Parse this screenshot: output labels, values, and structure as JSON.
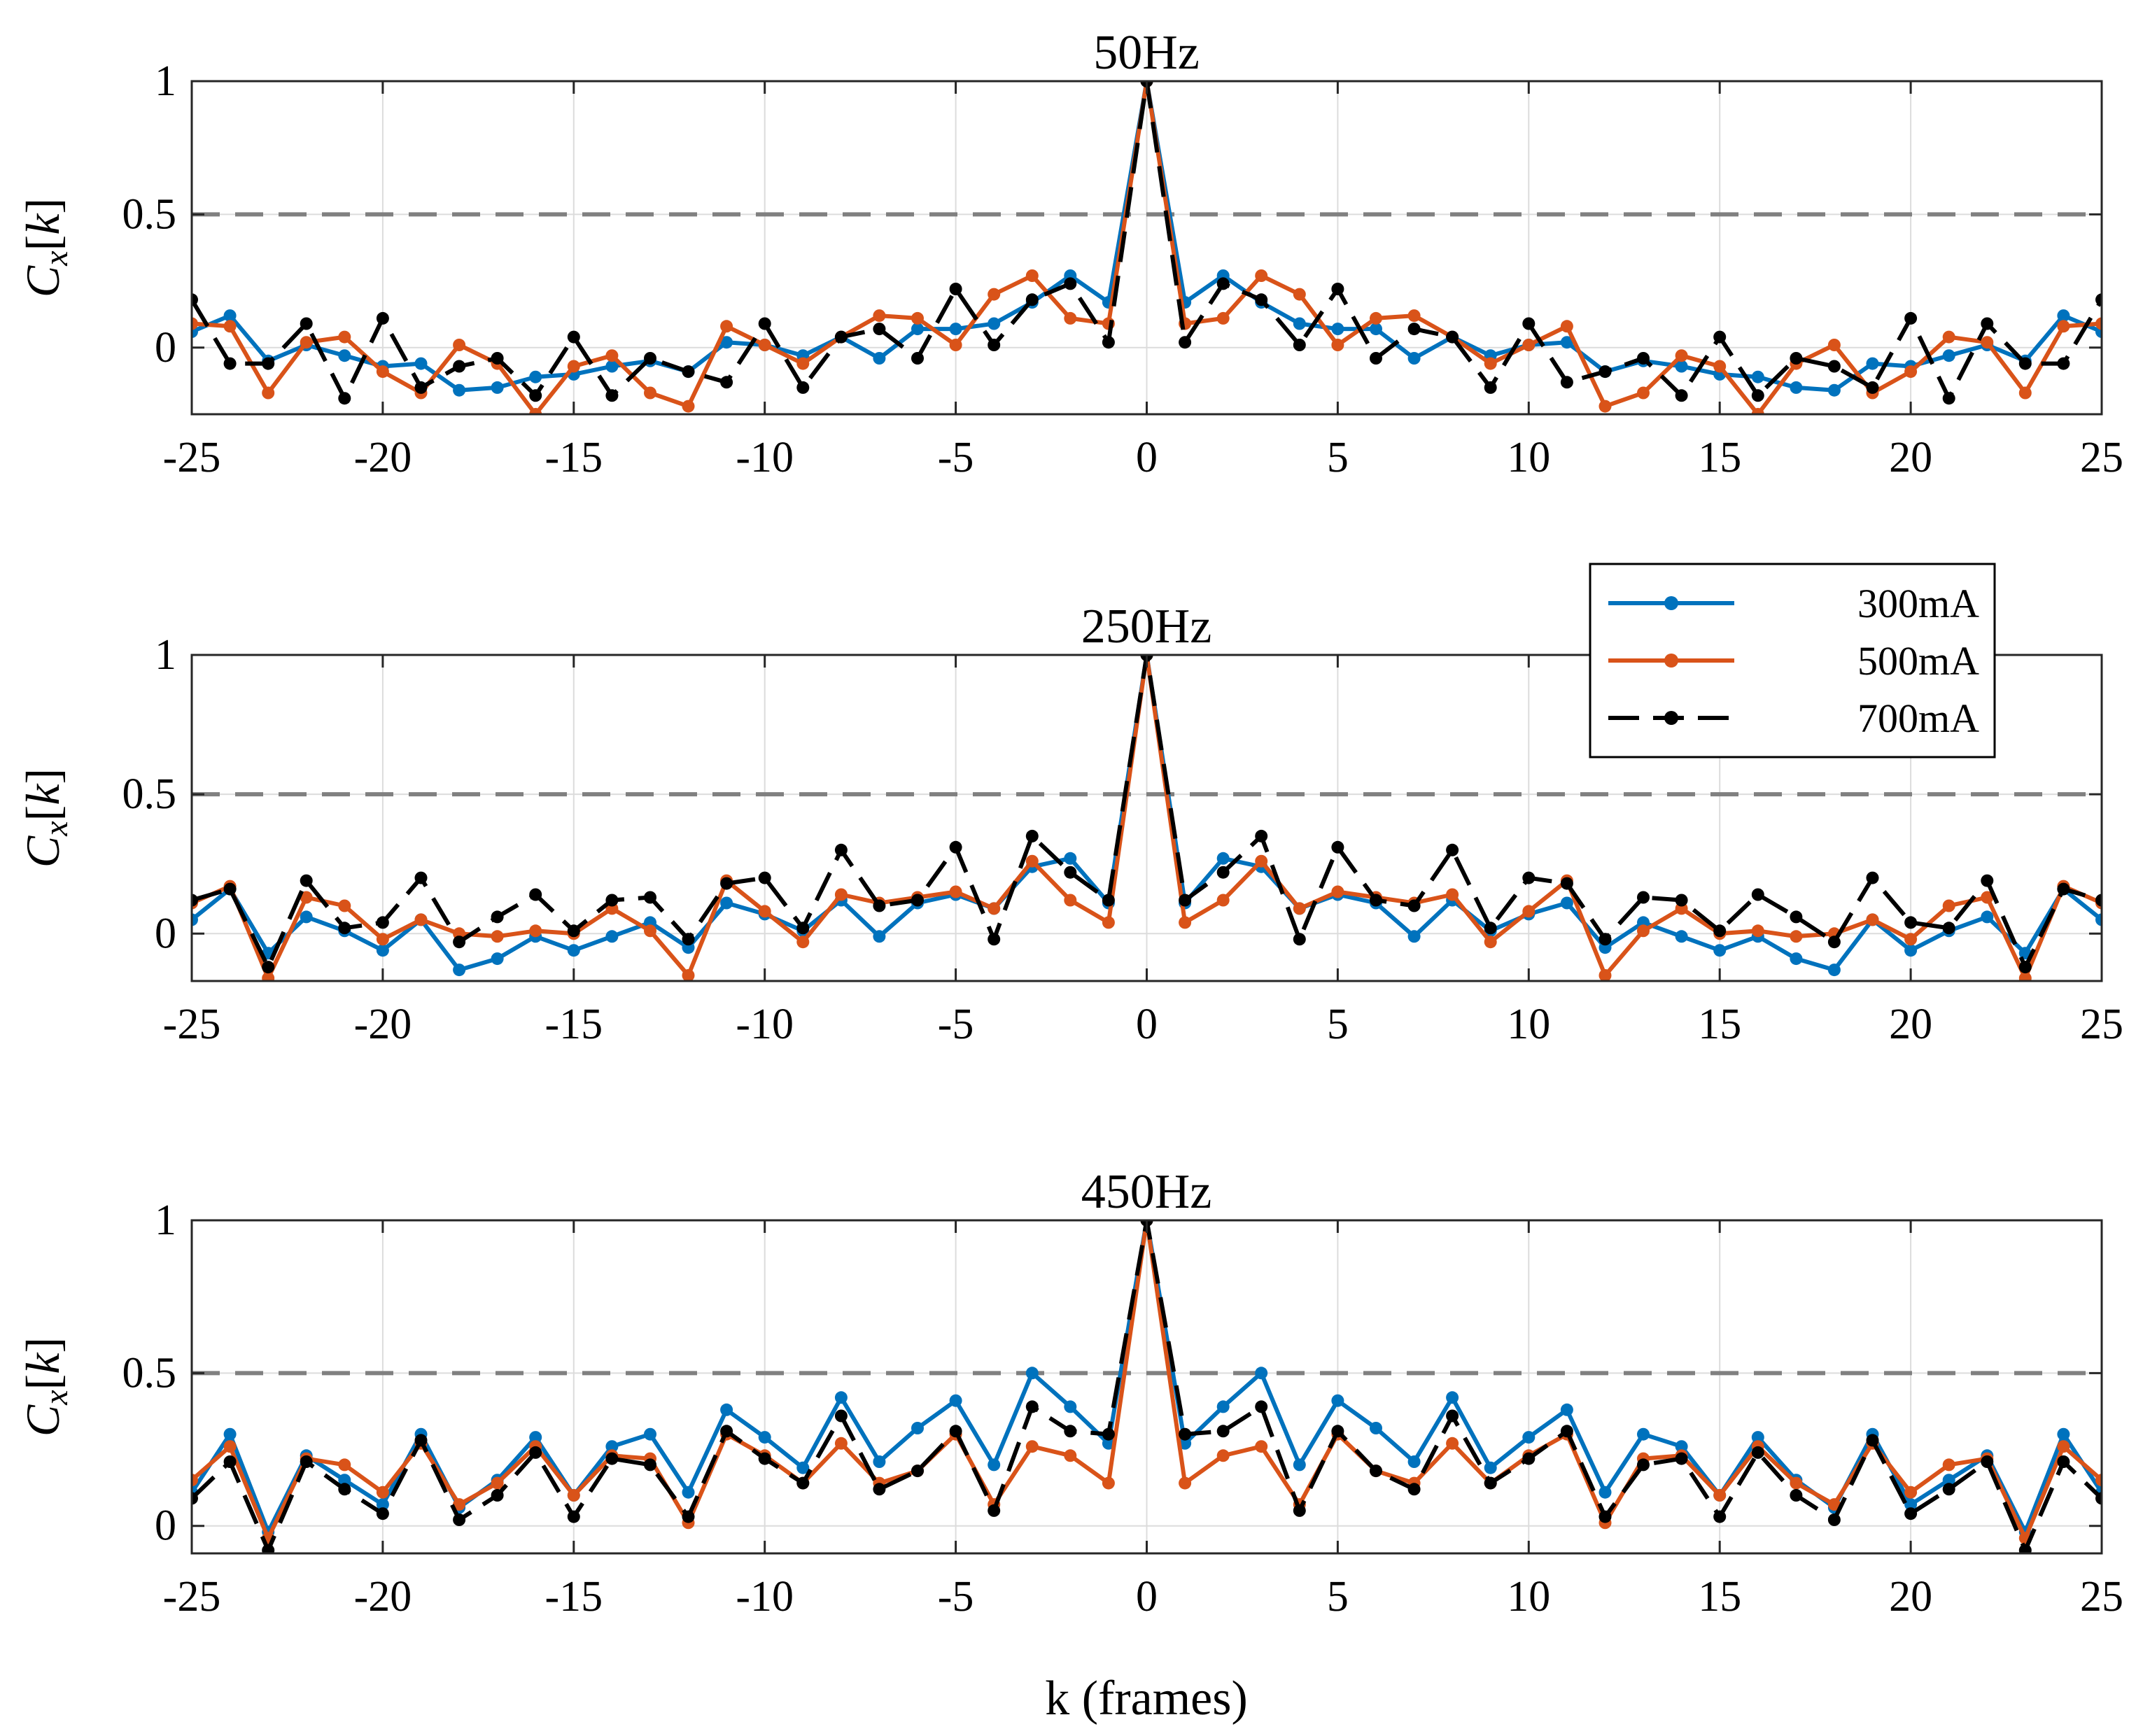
{
  "figure": {
    "xlabel": "k (frames)"
  },
  "chart_data": [
    {
      "type": "line",
      "title": "50Hz",
      "ylabel": "C_x[k]",
      "xlim": [
        -25,
        25
      ],
      "ylim": [
        -0.25,
        1
      ],
      "x": [
        -25,
        -24,
        -23,
        -22,
        -21,
        -20,
        -19,
        -18,
        -17,
        -16,
        -15,
        -14,
        -13,
        -12,
        -11,
        -10,
        -9,
        -8,
        -7,
        -6,
        -5,
        -4,
        -3,
        -2,
        -1,
        0,
        1,
        2,
        3,
        4,
        5,
        6,
        7,
        8,
        9,
        10,
        11,
        12,
        13,
        14,
        15,
        16,
        17,
        18,
        19,
        20,
        21,
        22,
        23,
        24,
        25
      ],
      "xticks": [
        "-25",
        "-20",
        "-15",
        "-10",
        "-5",
        "0",
        "5",
        "10",
        "15",
        "20",
        "25"
      ],
      "yticks": [
        {
          "value": 0,
          "label": "0"
        },
        {
          "value": 0.5,
          "label": "0.5"
        },
        {
          "value": 1,
          "label": "1"
        }
      ],
      "reference_line": 0.5,
      "grid": true,
      "series": [
        {
          "name": "300mA",
          "color": "#0072BD",
          "dashed": false,
          "values": [
            0.06,
            0.12,
            -0.05,
            0.01,
            -0.03,
            -0.07,
            -0.06,
            -0.16,
            -0.15,
            -0.11,
            -0.1,
            -0.07,
            -0.05,
            -0.09,
            0.02,
            0.01,
            -0.03,
            0.04,
            -0.04,
            0.07,
            0.07,
            0.09,
            0.17,
            0.27,
            0.17,
            1.0,
            0.17,
            0.27,
            0.17,
            0.09,
            0.07,
            0.07,
            -0.04,
            0.04,
            -0.03,
            0.01,
            0.02,
            -0.09,
            -0.05,
            -0.07,
            -0.1,
            -0.11,
            -0.15,
            -0.16,
            -0.06,
            -0.07,
            -0.03,
            0.01,
            -0.05,
            0.12,
            0.06
          ]
        },
        {
          "name": "500mA",
          "color": "#D95319",
          "dashed": false,
          "values": [
            0.09,
            0.08,
            -0.17,
            0.02,
            0.04,
            -0.09,
            -0.17,
            0.01,
            -0.06,
            -0.25,
            -0.07,
            -0.03,
            -0.17,
            -0.22,
            0.08,
            0.01,
            -0.06,
            0.04,
            0.12,
            0.11,
            0.01,
            0.2,
            0.27,
            0.11,
            0.09,
            1.0,
            0.09,
            0.11,
            0.27,
            0.2,
            0.01,
            0.11,
            0.12,
            0.04,
            -0.06,
            0.01,
            0.08,
            -0.22,
            -0.17,
            -0.03,
            -0.07,
            -0.25,
            -0.06,
            0.01,
            -0.17,
            -0.09,
            0.04,
            0.02,
            -0.17,
            0.08,
            0.09
          ]
        },
        {
          "name": "700mA",
          "color": "#000000",
          "dashed": true,
          "values": [
            0.18,
            -0.06,
            -0.06,
            0.09,
            -0.19,
            0.11,
            -0.15,
            -0.07,
            -0.04,
            -0.18,
            0.04,
            -0.18,
            -0.04,
            -0.09,
            -0.13,
            0.09,
            -0.15,
            0.04,
            0.07,
            -0.04,
            0.22,
            0.01,
            0.18,
            0.24,
            0.02,
            1.0,
            0.02,
            0.24,
            0.18,
            0.01,
            0.22,
            -0.04,
            0.07,
            0.04,
            -0.15,
            0.09,
            -0.13,
            -0.09,
            -0.04,
            -0.18,
            0.04,
            -0.18,
            -0.04,
            -0.07,
            -0.15,
            0.11,
            -0.19,
            0.09,
            -0.06,
            -0.06,
            0.18
          ]
        }
      ]
    },
    {
      "type": "line",
      "title": "250Hz",
      "ylabel": "C_x[k]",
      "xlim": [
        -25,
        25
      ],
      "ylim": [
        -0.17,
        1
      ],
      "x": [
        -25,
        -24,
        -23,
        -22,
        -21,
        -20,
        -19,
        -18,
        -17,
        -16,
        -15,
        -14,
        -13,
        -12,
        -11,
        -10,
        -9,
        -8,
        -7,
        -6,
        -5,
        -4,
        -3,
        -2,
        -1,
        0,
        1,
        2,
        3,
        4,
        5,
        6,
        7,
        8,
        9,
        10,
        11,
        12,
        13,
        14,
        15,
        16,
        17,
        18,
        19,
        20,
        21,
        22,
        23,
        24,
        25
      ],
      "xticks": [
        "-25",
        "-20",
        "-15",
        "-10",
        "-5",
        "0",
        "5",
        "10",
        "15",
        "20",
        "25"
      ],
      "yticks": [
        {
          "value": 0,
          "label": "0"
        },
        {
          "value": 0.5,
          "label": "0.5"
        },
        {
          "value": 1,
          "label": "1"
        }
      ],
      "reference_line": 0.5,
      "grid": true,
      "series": [
        {
          "name": "300mA",
          "color": "#0072BD",
          "dashed": false,
          "values": [
            0.05,
            0.16,
            -0.07,
            0.06,
            0.01,
            -0.06,
            0.05,
            -0.13,
            -0.09,
            -0.01,
            -0.06,
            -0.01,
            0.04,
            -0.05,
            0.11,
            0.07,
            0.01,
            0.12,
            -0.01,
            0.11,
            0.14,
            0.09,
            0.24,
            0.27,
            0.11,
            1.0,
            0.11,
            0.27,
            0.24,
            0.09,
            0.14,
            0.11,
            -0.01,
            0.12,
            0.01,
            0.07,
            0.11,
            -0.05,
            0.04,
            -0.01,
            -0.06,
            -0.01,
            -0.09,
            -0.13,
            0.05,
            -0.06,
            0.01,
            0.06,
            -0.07,
            0.16,
            0.05
          ]
        },
        {
          "name": "500mA",
          "color": "#D95319",
          "dashed": false,
          "values": [
            0.11,
            0.17,
            -0.16,
            0.13,
            0.1,
            -0.02,
            0.05,
            0.0,
            -0.01,
            0.01,
            0.0,
            0.09,
            0.01,
            -0.15,
            0.19,
            0.08,
            -0.03,
            0.14,
            0.11,
            0.13,
            0.15,
            0.09,
            0.26,
            0.12,
            0.04,
            1.0,
            0.04,
            0.12,
            0.26,
            0.09,
            0.15,
            0.13,
            0.11,
            0.14,
            -0.03,
            0.08,
            0.19,
            -0.15,
            0.01,
            0.09,
            0.0,
            0.01,
            -0.01,
            0.0,
            0.05,
            -0.02,
            0.1,
            0.13,
            -0.16,
            0.17,
            0.11
          ]
        },
        {
          "name": "700mA",
          "color": "#000000",
          "dashed": true,
          "values": [
            0.12,
            0.16,
            -0.12,
            0.19,
            0.02,
            0.04,
            0.2,
            -0.03,
            0.06,
            0.14,
            0.01,
            0.12,
            0.13,
            -0.02,
            0.18,
            0.2,
            0.02,
            0.3,
            0.1,
            0.12,
            0.31,
            -0.02,
            0.35,
            0.22,
            0.12,
            1.0,
            0.12,
            0.22,
            0.35,
            -0.02,
            0.31,
            0.12,
            0.1,
            0.3,
            0.02,
            0.2,
            0.18,
            -0.02,
            0.13,
            0.12,
            0.01,
            0.14,
            0.06,
            -0.03,
            0.2,
            0.04,
            0.02,
            0.19,
            -0.12,
            0.16,
            0.12
          ]
        }
      ]
    },
    {
      "type": "line",
      "title": "450Hz",
      "ylabel": "C_x[k]",
      "xlim": [
        -25,
        25
      ],
      "ylim": [
        -0.09,
        1
      ],
      "x": [
        -25,
        -24,
        -23,
        -22,
        -21,
        -20,
        -19,
        -18,
        -17,
        -16,
        -15,
        -14,
        -13,
        -12,
        -11,
        -10,
        -9,
        -8,
        -7,
        -6,
        -5,
        -4,
        -3,
        -2,
        -1,
        0,
        1,
        2,
        3,
        4,
        5,
        6,
        7,
        8,
        9,
        10,
        11,
        12,
        13,
        14,
        15,
        16,
        17,
        18,
        19,
        20,
        21,
        22,
        23,
        24,
        25
      ],
      "xticks": [
        "-25",
        "-20",
        "-15",
        "-10",
        "-5",
        "0",
        "5",
        "10",
        "15",
        "20",
        "25"
      ],
      "yticks": [
        {
          "value": 0,
          "label": "0"
        },
        {
          "value": 0.5,
          "label": "0.5"
        },
        {
          "value": 1,
          "label": "1"
        }
      ],
      "reference_line": 0.5,
      "grid": true,
      "series": [
        {
          "name": "300mA",
          "color": "#0072BD",
          "dashed": false,
          "values": [
            0.11,
            0.3,
            -0.02,
            0.23,
            0.15,
            0.07,
            0.3,
            0.06,
            0.15,
            0.29,
            0.1,
            0.26,
            0.3,
            0.11,
            0.38,
            0.29,
            0.19,
            0.42,
            0.21,
            0.32,
            0.41,
            0.2,
            0.5,
            0.39,
            0.27,
            1.0,
            0.27,
            0.39,
            0.5,
            0.2,
            0.41,
            0.32,
            0.21,
            0.42,
            0.19,
            0.29,
            0.38,
            0.11,
            0.3,
            0.26,
            0.1,
            0.29,
            0.15,
            0.06,
            0.3,
            0.07,
            0.15,
            0.23,
            -0.02,
            0.3,
            0.11
          ]
        },
        {
          "name": "500mA",
          "color": "#D95319",
          "dashed": false,
          "values": [
            0.15,
            0.26,
            -0.04,
            0.22,
            0.2,
            0.11,
            0.27,
            0.07,
            0.14,
            0.26,
            0.1,
            0.23,
            0.22,
            0.01,
            0.3,
            0.23,
            0.14,
            0.27,
            0.14,
            0.18,
            0.3,
            0.07,
            0.26,
            0.23,
            0.14,
            1.0,
            0.14,
            0.23,
            0.26,
            0.07,
            0.3,
            0.18,
            0.14,
            0.27,
            0.14,
            0.23,
            0.3,
            0.01,
            0.22,
            0.23,
            0.1,
            0.26,
            0.14,
            0.07,
            0.27,
            0.11,
            0.2,
            0.22,
            -0.04,
            0.26,
            0.15
          ]
        },
        {
          "name": "700mA",
          "color": "#000000",
          "dashed": true,
          "values": [
            0.09,
            0.21,
            -0.08,
            0.21,
            0.12,
            0.04,
            0.28,
            0.02,
            0.1,
            0.24,
            0.03,
            0.22,
            0.2,
            0.03,
            0.31,
            0.22,
            0.14,
            0.36,
            0.12,
            0.18,
            0.31,
            0.05,
            0.39,
            0.31,
            0.3,
            1.0,
            0.3,
            0.31,
            0.39,
            0.05,
            0.31,
            0.18,
            0.12,
            0.36,
            0.14,
            0.22,
            0.31,
            0.03,
            0.2,
            0.22,
            0.03,
            0.24,
            0.1,
            0.02,
            0.28,
            0.04,
            0.12,
            0.21,
            -0.08,
            0.21,
            0.09
          ]
        }
      ]
    }
  ],
  "legend": {
    "entries": [
      {
        "label": "300mA",
        "color": "#0072BD",
        "dashed": false
      },
      {
        "label": "500mA",
        "color": "#D95319",
        "dashed": false
      },
      {
        "label": "700mA",
        "color": "#000000",
        "dashed": true
      }
    ]
  }
}
